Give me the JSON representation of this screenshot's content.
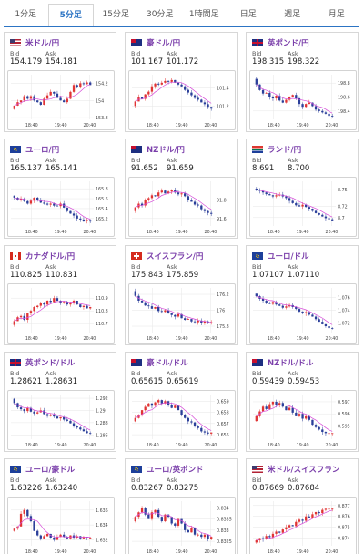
{
  "tabs": [
    "1分足",
    "5分足",
    "15分足",
    "30分足",
    "1時間足",
    "日足",
    "週足",
    "月足"
  ],
  "active_tab": 1,
  "labels": {
    "bid": "Bid",
    "ask": "Ask"
  },
  "chart_data": [
    {
      "type": "candlestick",
      "pair": "米ドル/円",
      "flag": "us",
      "bid": "154.179",
      "ask": "154.181",
      "y_ticks": [
        "154.2",
        "154",
        "153.8"
      ],
      "x_ticks": [
        "18:40",
        "19:40",
        "20:40"
      ],
      "ylim": [
        153.78,
        154.3
      ],
      "closes": [
        153.94,
        153.98,
        154.0,
        154.05,
        154.02,
        154.05,
        154.0,
        153.98,
        153.95,
        154.02,
        154.06,
        154.1,
        154.08,
        154.03,
        154.0,
        153.98,
        154.02,
        154.1,
        154.18,
        154.15,
        154.2,
        154.19,
        154.21,
        154.18
      ]
    },
    {
      "type": "candlestick",
      "pair": "豪ドル/円",
      "flag": "au",
      "bid": "101.167",
      "ask": "101.172",
      "y_ticks": [
        "101.4",
        "101.2"
      ],
      "x_ticks": [
        "18:40",
        "19:40",
        "20:40"
      ],
      "ylim": [
        101.05,
        101.55
      ],
      "closes": [
        101.25,
        101.3,
        101.28,
        101.33,
        101.36,
        101.42,
        101.45,
        101.44,
        101.46,
        101.48,
        101.47,
        101.49,
        101.46,
        101.44,
        101.42,
        101.38,
        101.35,
        101.32,
        101.29,
        101.27,
        101.24,
        101.22,
        101.19,
        101.17
      ]
    },
    {
      "type": "candlestick",
      "pair": "英ポンド/円",
      "flag": "gb",
      "bid": "198.315",
      "ask": "198.322",
      "y_ticks": [
        "198.8",
        "198.6",
        "198.4"
      ],
      "x_ticks": [
        "18:40",
        "19:40",
        "20:40"
      ],
      "ylim": [
        198.28,
        198.92
      ],
      "closes": [
        198.78,
        198.7,
        198.65,
        198.66,
        198.6,
        198.58,
        198.62,
        198.55,
        198.52,
        198.56,
        198.6,
        198.63,
        198.58,
        198.5,
        198.46,
        198.5,
        198.52,
        198.47,
        198.42,
        198.4,
        198.38,
        198.36,
        198.33,
        198.32
      ]
    },
    {
      "type": "candlestick",
      "pair": "ユーロ/円",
      "flag": "eu",
      "bid": "165.137",
      "ask": "165.141",
      "y_ticks": [
        "165.8",
        "165.6",
        "165.4",
        "165.2"
      ],
      "x_ticks": [
        "18:40",
        "19:40",
        "20:40"
      ],
      "ylim": [
        165.05,
        165.95
      ],
      "closes": [
        165.62,
        165.58,
        165.6,
        165.55,
        165.5,
        165.56,
        165.62,
        165.58,
        165.52,
        165.5,
        165.48,
        165.5,
        165.46,
        165.45,
        165.5,
        165.42,
        165.35,
        165.3,
        165.26,
        165.2,
        165.18,
        165.15,
        165.17,
        165.14
      ]
    },
    {
      "type": "candlestick",
      "pair": "NZドル/円",
      "flag": "nz",
      "bid": "91.652",
      "ask": "91.659",
      "y_ticks": [
        "91.8",
        "91.6"
      ],
      "x_ticks": [
        "18:40",
        "19:40",
        "20:40"
      ],
      "ylim": [
        91.52,
        92.0
      ],
      "closes": [
        91.72,
        91.76,
        91.74,
        91.8,
        91.82,
        91.85,
        91.84,
        91.88,
        91.9,
        91.87,
        91.89,
        91.91,
        91.88,
        91.86,
        91.87,
        91.84,
        91.8,
        91.78,
        91.75,
        91.74,
        91.7,
        91.68,
        91.66,
        91.65
      ]
    },
    {
      "type": "candlestick",
      "pair": "ランド/円",
      "flag": "za",
      "bid": "8.691",
      "ask": "8.700",
      "y_ticks": [
        "8.75",
        "8.72",
        "8.7"
      ],
      "x_ticks": [
        "18:40",
        "19:40",
        "20:40"
      ],
      "ylim": [
        8.685,
        8.765
      ],
      "closes": [
        8.75,
        8.748,
        8.745,
        8.742,
        8.74,
        8.738,
        8.74,
        8.741,
        8.738,
        8.735,
        8.73,
        8.726,
        8.722,
        8.72,
        8.723,
        8.719,
        8.716,
        8.712,
        8.708,
        8.705,
        8.702,
        8.699,
        8.697,
        8.695
      ]
    },
    {
      "type": "candlestick",
      "pair": "カナダドル/円",
      "flag": "ca",
      "bid": "110.825",
      "ask": "110.831",
      "y_ticks": [
        "110.9",
        "110.8",
        "110.7"
      ],
      "x_ticks": [
        "18:40",
        "19:40",
        "20:40"
      ],
      "ylim": [
        110.63,
        110.98
      ],
      "closes": [
        110.72,
        110.75,
        110.76,
        110.73,
        110.78,
        110.8,
        110.83,
        110.84,
        110.86,
        110.85,
        110.88,
        110.87,
        110.9,
        110.88,
        110.86,
        110.87,
        110.85,
        110.86,
        110.88,
        110.85,
        110.83,
        110.84,
        110.82,
        110.83
      ]
    },
    {
      "type": "candlestick",
      "pair": "スイスフラン/円",
      "flag": "ch",
      "bid": "175.843",
      "ask": "175.859",
      "y_ticks": [
        "176.2",
        "176",
        "175.8"
      ],
      "x_ticks": [
        "18:40",
        "19:40",
        "20:40"
      ],
      "ylim": [
        175.72,
        176.28
      ],
      "closes": [
        176.18,
        176.12,
        176.1,
        176.06,
        176.05,
        176.02,
        176.04,
        175.99,
        175.98,
        176.0,
        175.96,
        175.94,
        175.92,
        175.95,
        175.9,
        175.88,
        175.89,
        175.86,
        175.85,
        175.87,
        175.84,
        175.86,
        175.84,
        175.85
      ]
    },
    {
      "type": "candlestick",
      "pair": "ユーロ/ドル",
      "flag": "eu",
      "bid": "1.07107",
      "ask": "1.07110",
      "y_ticks": [
        "1.076",
        "1.074",
        "1.072"
      ],
      "x_ticks": [
        "18:40",
        "19:40",
        "20:40"
      ],
      "ylim": [
        1.0705,
        1.0775
      ],
      "closes": [
        1.0762,
        1.0758,
        1.0755,
        1.0752,
        1.075,
        1.0753,
        1.0749,
        1.0747,
        1.0744,
        1.0746,
        1.0748,
        1.0745,
        1.0742,
        1.0738,
        1.0735,
        1.0737,
        1.0733,
        1.073,
        1.0726,
        1.0722,
        1.0718,
        1.0715,
        1.0712,
        1.0711
      ]
    },
    {
      "type": "candlestick",
      "pair": "英ポンド/ドル",
      "flag": "gb",
      "bid": "1.28621",
      "ask": "1.28631",
      "y_ticks": [
        "1.292",
        "1.29",
        "1.288",
        "1.286"
      ],
      "x_ticks": [
        "18:40",
        "19:40",
        "20:40"
      ],
      "ylim": [
        1.2853,
        1.2926
      ],
      "closes": [
        1.2912,
        1.2905,
        1.2902,
        1.2899,
        1.2904,
        1.2898,
        1.2895,
        1.2897,
        1.29,
        1.2894,
        1.2891,
        1.2893,
        1.289,
        1.2887,
        1.2889,
        1.2885,
        1.2883,
        1.2879,
        1.2875,
        1.2872,
        1.2869,
        1.2866,
        1.2863,
        1.2862
      ]
    },
    {
      "type": "candlestick",
      "pair": "豪ドル/ドル",
      "flag": "au",
      "bid": "0.65615",
      "ask": "0.65619",
      "y_ticks": [
        "0.659",
        "0.658",
        "0.657",
        "0.656"
      ],
      "x_ticks": [
        "18:40",
        "19:40",
        "20:40"
      ],
      "ylim": [
        0.6556,
        0.6596
      ],
      "closes": [
        0.6575,
        0.6578,
        0.6582,
        0.6585,
        0.6588,
        0.6586,
        0.6589,
        0.6591,
        0.6588,
        0.659,
        0.6587,
        0.6584,
        0.6586,
        0.6582,
        0.6578,
        0.6575,
        0.6572,
        0.6571,
        0.6568,
        0.6566,
        0.6563,
        0.6562,
        0.6561,
        0.6562
      ]
    },
    {
      "type": "candlestick",
      "pair": "NZドル/ドル",
      "flag": "nz",
      "bid": "0.59439",
      "ask": "0.59453",
      "y_ticks": [
        "0.597",
        "0.596",
        "0.595"
      ],
      "x_ticks": [
        "18:40",
        "19:40",
        "20:40"
      ],
      "ylim": [
        0.5939,
        0.5976
      ],
      "closes": [
        0.5958,
        0.5962,
        0.5966,
        0.5964,
        0.5968,
        0.597,
        0.5967,
        0.5969,
        0.5966,
        0.5963,
        0.5965,
        0.5961,
        0.5958,
        0.596,
        0.5956,
        0.5958,
        0.5955,
        0.5951,
        0.5949,
        0.5947,
        0.5945,
        0.5944,
        0.5944,
        0.5944
      ]
    },
    {
      "type": "candlestick",
      "pair": "ユーロ/豪ドル",
      "flag": "eu",
      "bid": "1.63226",
      "ask": "1.63240",
      "y_ticks": [
        "1.636",
        "1.634",
        "1.632"
      ],
      "x_ticks": [
        "18:40",
        "19:40",
        "20:40"
      ],
      "ylim": [
        1.6312,
        1.6372
      ],
      "closes": [
        1.6335,
        1.6338,
        1.6355,
        1.636,
        1.6352,
        1.6345,
        1.6332,
        1.6326,
        1.6322,
        1.6325,
        1.6328,
        1.6323,
        1.632,
        1.6324,
        1.6327,
        1.6324,
        1.6322,
        1.6326,
        1.6323,
        1.6325,
        1.6322,
        1.6324,
        1.6323,
        1.6323
      ]
    },
    {
      "type": "candlestick",
      "pair": "ユーロ/英ポンド",
      "flag": "eu",
      "bid": "0.83267",
      "ask": "0.83275",
      "y_ticks": [
        "0.834",
        "0.8335",
        "0.833",
        "0.8325"
      ],
      "x_ticks": [
        "18:40",
        "19:40",
        "20:40"
      ],
      "ylim": [
        0.8323,
        0.8343
      ],
      "closes": [
        0.8336,
        0.8338,
        0.834,
        0.8337,
        0.8335,
        0.8338,
        0.8339,
        0.8336,
        0.8334,
        0.8337,
        0.8336,
        0.8333,
        0.8332,
        0.8335,
        0.8333,
        0.833,
        0.8329,
        0.8331,
        0.8328,
        0.8328,
        0.8327,
        0.8328,
        0.8326,
        0.8327
      ]
    },
    {
      "type": "candlestick",
      "pair": "米ドル/スイスフラン",
      "flag": "us",
      "bid": "0.87669",
      "ask": "0.87684",
      "y_ticks": [
        "0.877",
        "0.876",
        "0.875",
        "0.874"
      ],
      "x_ticks": [
        "18:40",
        "19:40",
        "20:40"
      ],
      "ylim": [
        0.8733,
        0.8774
      ],
      "closes": [
        0.8738,
        0.874,
        0.8739,
        0.8742,
        0.8741,
        0.8744,
        0.8746,
        0.8745,
        0.8748,
        0.875,
        0.8752,
        0.8751,
        0.8755,
        0.8757,
        0.8756,
        0.876,
        0.8759,
        0.8762,
        0.8764,
        0.8763,
        0.8766,
        0.8767,
        0.8767,
        0.8767
      ]
    }
  ],
  "colors": {
    "up": "#e03434",
    "down": "#2b3f9a",
    "ma": "#d64ad8",
    "grid": "#e6e6e6",
    "accent": "#2c74c4",
    "pair_text": "#7a3eaa"
  }
}
